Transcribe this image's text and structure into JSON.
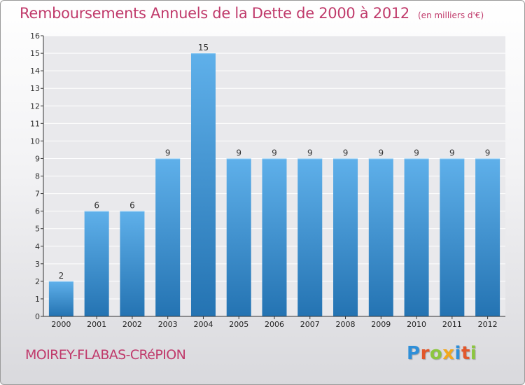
{
  "header": {
    "title": "Remboursements Annuels de la Dette de 2000 à 2012",
    "subtitle": "(en milliers d'€)"
  },
  "footer": {
    "town": "MOIREY-FLABAS-CRéPION",
    "logo_letters": [
      "P",
      "r",
      "o",
      "x",
      "i",
      "t",
      "i"
    ],
    "logo_colors": [
      "#2f8fd8",
      "#e2572b",
      "#8cc63f",
      "#f2a81d",
      "#2f8fd8",
      "#e2572b",
      "#8cc63f"
    ]
  },
  "colors": {
    "bar_light": "#5fb0ea",
    "bar_dark": "#2473b2",
    "plot_bg": "#e9e9ec",
    "grid": "#ffffff",
    "axis": "#333333",
    "title": "#c03a6b"
  },
  "chart_data": {
    "type": "bar",
    "title": "Remboursements Annuels de la Dette de 2000 à 2012",
    "categories": [
      "2000",
      "2001",
      "2002",
      "2003",
      "2004",
      "2005",
      "2006",
      "2007",
      "2008",
      "2009",
      "2010",
      "2011",
      "2012"
    ],
    "values": [
      2,
      6,
      6,
      9,
      15,
      9,
      9,
      9,
      9,
      9,
      9,
      9,
      9
    ],
    "ylim": [
      0,
      16
    ],
    "yticks": [
      0,
      1,
      2,
      3,
      4,
      5,
      6,
      7,
      8,
      9,
      10,
      11,
      12,
      13,
      14,
      15,
      16
    ],
    "grid": true,
    "legend": "none"
  }
}
